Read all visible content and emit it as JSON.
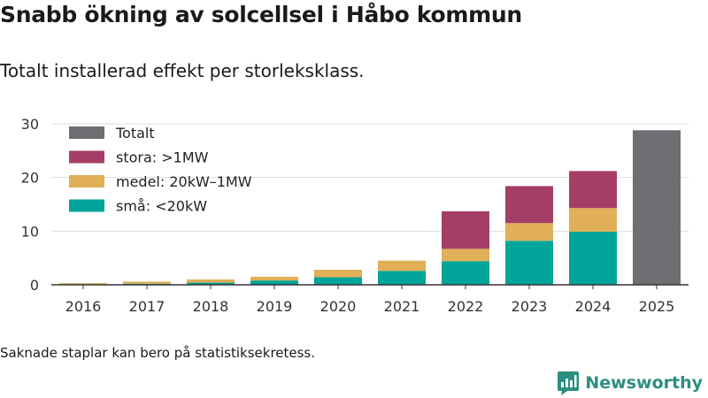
{
  "title": "Snabb ökning av solcellsel i Håbo kommun",
  "subtitle": "Totalt installerad effekt per storleksklass.",
  "note": "Saknade staplar kan bero på statistiksekretess.",
  "brand": {
    "name": "Newsworthy",
    "logo_icon": "bar-chart-icon"
  },
  "colors": {
    "total": "#6e6e73",
    "stora": "#a53e66",
    "medel": "#e0af57",
    "sma": "#00a499",
    "grid": "#dddddd",
    "axis": "#333333",
    "brand": "#2c8f80"
  },
  "chart_data": {
    "type": "bar",
    "stacked": true,
    "title": "Snabb ökning av solcellsel i Håbo kommun",
    "subtitle": "Totalt installerad effekt per storleksklass.",
    "xlabel": "",
    "ylabel": "",
    "categories": [
      "2016",
      "2017",
      "2018",
      "2019",
      "2020",
      "2021",
      "2022",
      "2023",
      "2024",
      "2025"
    ],
    "ylim": [
      0,
      30
    ],
    "yticks": [
      0,
      10,
      20,
      30
    ],
    "grid": true,
    "legend_position": "top-left",
    "legend": [
      {
        "key": "total",
        "label": "Totalt"
      },
      {
        "key": "stora",
        "label": "stora: >1MW"
      },
      {
        "key": "medel",
        "label": "medel: 20kW–1MW"
      },
      {
        "key": "sma",
        "label": "små: <20kW"
      }
    ],
    "series": [
      {
        "key": "sma",
        "name": "små: <20kW",
        "values": [
          0.1,
          0.2,
          0.4,
          0.8,
          1.4,
          2.6,
          4.4,
          8.2,
          9.9,
          null
        ]
      },
      {
        "key": "medel",
        "name": "medel: 20kW–1MW",
        "values": [
          0.2,
          0.4,
          0.6,
          0.7,
          1.4,
          1.9,
          2.3,
          3.3,
          4.4,
          null
        ]
      },
      {
        "key": "stora",
        "name": "stora: >1MW",
        "values": [
          0,
          0,
          0,
          0,
          0,
          0,
          7.0,
          6.9,
          6.9,
          null
        ]
      },
      {
        "key": "total",
        "name": "Totalt",
        "values": [
          null,
          null,
          null,
          null,
          null,
          null,
          null,
          null,
          null,
          28.8
        ]
      }
    ]
  }
}
